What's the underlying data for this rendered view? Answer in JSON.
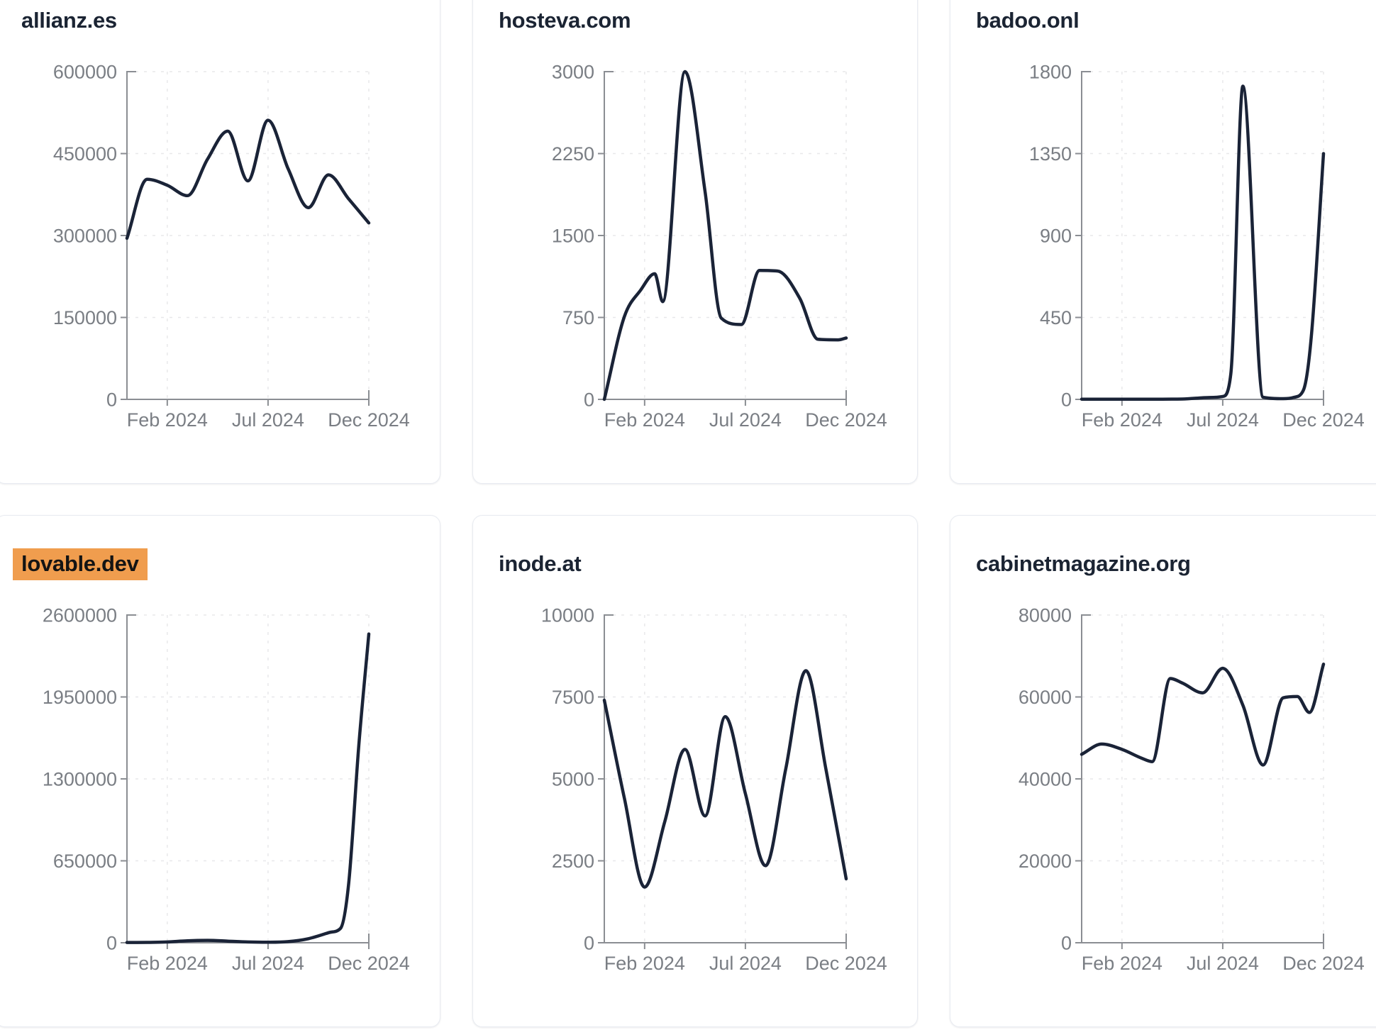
{
  "style": {
    "line_color": "#1a2337",
    "title_color": "#1b2433",
    "label_color": "#7a7e84",
    "axis_color": "#8b8e93",
    "grid_color": "#e8e8ea",
    "panel_border": "#e8ebf1",
    "highlight_color": "#f09d4e",
    "background": "#ffffff"
  },
  "chart_data": [
    {
      "type": "line",
      "title": "allianz.es",
      "highlighted": false,
      "x_ticks": [
        {
          "label": "Feb 2024",
          "month": 2
        },
        {
          "label": "Jul 2024",
          "month": 7
        },
        {
          "label": "Dec 2024",
          "month": 12
        }
      ],
      "x_domain_months": [
        0,
        12
      ],
      "y_ticks": [
        0,
        150000,
        300000,
        450000,
        600000
      ],
      "y_max": 600000,
      "points": [
        [
          0,
          295000
        ],
        [
          1,
          403000
        ],
        [
          2,
          392000
        ],
        [
          3,
          373000
        ],
        [
          4,
          440000
        ],
        [
          5,
          491000
        ],
        [
          6,
          400000
        ],
        [
          7,
          511000
        ],
        [
          8,
          422000
        ],
        [
          9,
          351000
        ],
        [
          10,
          411000
        ],
        [
          11,
          367000
        ],
        [
          12,
          323000
        ]
      ]
    },
    {
      "type": "line",
      "title": "hosteva.com",
      "highlighted": false,
      "x_ticks": [
        {
          "label": "Feb 2024",
          "month": 2
        },
        {
          "label": "Jul 2024",
          "month": 7
        },
        {
          "label": "Dec 2024",
          "month": 12
        }
      ],
      "x_domain_months": [
        0,
        12
      ],
      "y_ticks": [
        0,
        750,
        1500,
        2250,
        3000
      ],
      "y_max": 3000,
      "points": [
        [
          0,
          0
        ],
        [
          1,
          760
        ],
        [
          1.8,
          1000
        ],
        [
          2.5,
          1150
        ],
        [
          2.9,
          895
        ],
        [
          4,
          3000
        ],
        [
          5,
          1900
        ],
        [
          5.8,
          745
        ],
        [
          6.8,
          685
        ],
        [
          7.7,
          1180
        ],
        [
          8.6,
          1175
        ],
        [
          9.7,
          925
        ],
        [
          10.6,
          550
        ],
        [
          11.6,
          545
        ],
        [
          12,
          562
        ]
      ]
    },
    {
      "type": "line",
      "title": "badoo.onl",
      "highlighted": false,
      "x_ticks": [
        {
          "label": "Feb 2024",
          "month": 2
        },
        {
          "label": "Jul 2024",
          "month": 7
        },
        {
          "label": "Dec 2024",
          "month": 12
        }
      ],
      "x_domain_months": [
        0,
        12
      ],
      "y_ticks": [
        0,
        450,
        900,
        1350,
        1800
      ],
      "y_max": 1800,
      "points": [
        [
          0,
          1
        ],
        [
          1,
          1
        ],
        [
          2,
          1
        ],
        [
          3,
          1
        ],
        [
          4,
          1
        ],
        [
          5,
          2
        ],
        [
          6,
          9
        ],
        [
          7,
          16
        ],
        [
          7.4,
          140
        ],
        [
          8,
          1720
        ],
        [
          9,
          12
        ],
        [
          10,
          4
        ],
        [
          10.5,
          10
        ],
        [
          11,
          50
        ],
        [
          11.4,
          350
        ],
        [
          12,
          1350
        ]
      ]
    },
    {
      "type": "line",
      "title": "lovable.dev",
      "highlighted": true,
      "x_ticks": [
        {
          "label": "Feb 2024",
          "month": 2
        },
        {
          "label": "Jul 2024",
          "month": 7
        },
        {
          "label": "Dec 2024",
          "month": 12
        }
      ],
      "x_domain_months": [
        0,
        12
      ],
      "y_ticks": [
        0,
        650000,
        1300000,
        1950000,
        2600000
      ],
      "y_max": 2600000,
      "points": [
        [
          0,
          2000
        ],
        [
          1,
          3000
        ],
        [
          2,
          6000
        ],
        [
          3,
          16000
        ],
        [
          4,
          19000
        ],
        [
          5,
          13000
        ],
        [
          6,
          6000
        ],
        [
          7,
          4000
        ],
        [
          8,
          9000
        ],
        [
          9,
          32000
        ],
        [
          10,
          80000
        ],
        [
          10.6,
          115000
        ],
        [
          11,
          470000
        ],
        [
          11.5,
          1560000
        ],
        [
          12,
          2450000
        ]
      ]
    },
    {
      "type": "line",
      "title": "inode.at",
      "highlighted": false,
      "x_ticks": [
        {
          "label": "Feb 2024",
          "month": 2
        },
        {
          "label": "Jul 2024",
          "month": 7
        },
        {
          "label": "Dec 2024",
          "month": 12
        }
      ],
      "x_domain_months": [
        0,
        12
      ],
      "y_ticks": [
        0,
        2500,
        5000,
        7500,
        10000
      ],
      "y_max": 10000,
      "points": [
        [
          0,
          7400
        ],
        [
          1,
          4400
        ],
        [
          2,
          1700
        ],
        [
          3,
          3700
        ],
        [
          4,
          5900
        ],
        [
          5,
          3870
        ],
        [
          6,
          6900
        ],
        [
          7,
          4550
        ],
        [
          8,
          2350
        ],
        [
          9,
          5300
        ],
        [
          10,
          8300
        ],
        [
          11,
          5280
        ],
        [
          12,
          1950
        ]
      ]
    },
    {
      "type": "line",
      "title": "cabinetmagazine.org",
      "highlighted": false,
      "x_ticks": [
        {
          "label": "Feb 2024",
          "month": 2
        },
        {
          "label": "Jul 2024",
          "month": 7
        },
        {
          "label": "Dec 2024",
          "month": 12
        }
      ],
      "x_domain_months": [
        0,
        12
      ],
      "y_ticks": [
        0,
        20000,
        40000,
        60000,
        80000
      ],
      "y_max": 80000,
      "points": [
        [
          0,
          46000
        ],
        [
          1,
          48500
        ],
        [
          2,
          47200
        ],
        [
          3,
          45000
        ],
        [
          3.5,
          44200
        ],
        [
          4.4,
          64500
        ],
        [
          5,
          63400
        ],
        [
          6,
          61000
        ],
        [
          7,
          67000
        ],
        [
          8,
          58000
        ],
        [
          9,
          43400
        ],
        [
          10,
          59800
        ],
        [
          10.7,
          60100
        ],
        [
          11.3,
          56200
        ],
        [
          12,
          68000
        ]
      ]
    }
  ]
}
